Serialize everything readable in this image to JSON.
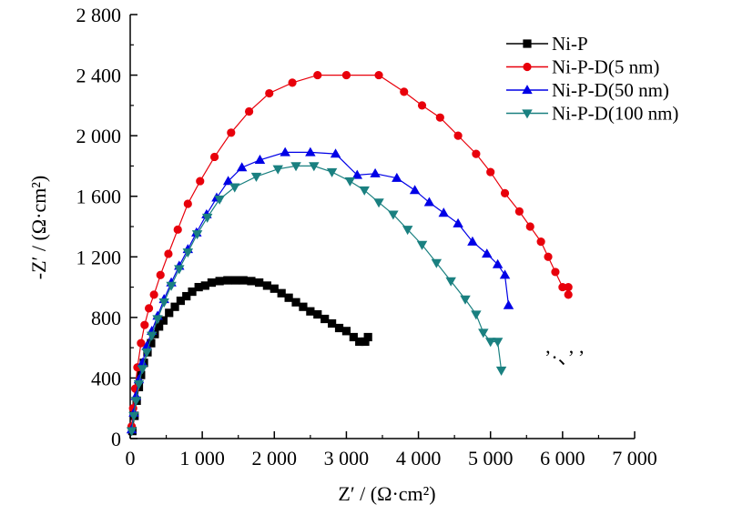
{
  "chart_data": {
    "type": "scatter",
    "title": "",
    "xlabel": "Z′ / (Ω·cm²)",
    "ylabel": "-Z′ / (Ω·cm²)",
    "xlim": [
      0,
      7000
    ],
    "ylim": [
      0,
      2800
    ],
    "xticks": [
      0,
      1000,
      2000,
      3000,
      4000,
      5000,
      6000,
      7000
    ],
    "xtick_labels": [
      "0",
      "1 000",
      "2 000",
      "3 000",
      "4 000",
      "5 000",
      "6 000",
      "7 000"
    ],
    "yticks": [
      0,
      400,
      800,
      1200,
      1600,
      2000,
      2400,
      2800
    ],
    "ytick_labels": [
      "0",
      "400",
      "800",
      "1 200",
      "1 600",
      "2 000",
      "2 400",
      "2 800"
    ],
    "grid": false,
    "legend_position": "top-right",
    "stray_text": "’·、’ ’",
    "series": [
      {
        "name": "Ni-P",
        "color": "#000000",
        "marker": "square",
        "points": [
          [
            30,
            50
          ],
          [
            60,
            150
          ],
          [
            90,
            250
          ],
          [
            120,
            340
          ],
          [
            150,
            420
          ],
          [
            190,
            500
          ],
          [
            240,
            570
          ],
          [
            290,
            630
          ],
          [
            340,
            690
          ],
          [
            400,
            740
          ],
          [
            460,
            780
          ],
          [
            540,
            830
          ],
          [
            620,
            870
          ],
          [
            700,
            910
          ],
          [
            780,
            940
          ],
          [
            860,
            970
          ],
          [
            950,
            1000
          ],
          [
            1040,
            1010
          ],
          [
            1130,
            1030
          ],
          [
            1240,
            1040
          ],
          [
            1350,
            1045
          ],
          [
            1460,
            1045
          ],
          [
            1570,
            1045
          ],
          [
            1680,
            1040
          ],
          [
            1790,
            1030
          ],
          [
            1900,
            1010
          ],
          [
            2000,
            990
          ],
          [
            2100,
            960
          ],
          [
            2200,
            930
          ],
          [
            2300,
            900
          ],
          [
            2400,
            870
          ],
          [
            2500,
            840
          ],
          [
            2600,
            820
          ],
          [
            2700,
            790
          ],
          [
            2800,
            760
          ],
          [
            2900,
            730
          ],
          [
            3000,
            710
          ],
          [
            3100,
            670
          ],
          [
            3180,
            640
          ],
          [
            3260,
            640
          ],
          [
            3300,
            670
          ]
        ]
      },
      {
        "name": "Ni-P-D(5 nm)",
        "color": "#e8000b",
        "marker": "circle",
        "points": [
          [
            20,
            80
          ],
          [
            40,
            200
          ],
          [
            70,
            330
          ],
          [
            100,
            470
          ],
          [
            150,
            630
          ],
          [
            200,
            750
          ],
          [
            260,
            860
          ],
          [
            330,
            950
          ],
          [
            420,
            1080
          ],
          [
            530,
            1220
          ],
          [
            660,
            1380
          ],
          [
            800,
            1550
          ],
          [
            970,
            1700
          ],
          [
            1170,
            1860
          ],
          [
            1400,
            2020
          ],
          [
            1650,
            2160
          ],
          [
            1930,
            2280
          ],
          [
            2250,
            2350
          ],
          [
            2600,
            2400
          ],
          [
            3000,
            2400
          ],
          [
            3450,
            2400
          ],
          [
            3800,
            2290
          ],
          [
            4050,
            2200
          ],
          [
            4300,
            2120
          ],
          [
            4550,
            2000
          ],
          [
            4800,
            1880
          ],
          [
            5000,
            1760
          ],
          [
            5200,
            1620
          ],
          [
            5400,
            1500
          ],
          [
            5550,
            1400
          ],
          [
            5700,
            1300
          ],
          [
            5800,
            1200
          ],
          [
            5900,
            1100
          ],
          [
            6000,
            1000
          ],
          [
            6080,
            1000
          ],
          [
            6080,
            950
          ]
        ]
      },
      {
        "name": "Ni-P-D(50 nm)",
        "color": "#0000e6",
        "marker": "triangle-up",
        "points": [
          [
            20,
            60
          ],
          [
            50,
            170
          ],
          [
            80,
            280
          ],
          [
            120,
            390
          ],
          [
            170,
            500
          ],
          [
            230,
            610
          ],
          [
            300,
            710
          ],
          [
            380,
            810
          ],
          [
            470,
            920
          ],
          [
            570,
            1030
          ],
          [
            680,
            1140
          ],
          [
            800,
            1250
          ],
          [
            920,
            1360
          ],
          [
            1060,
            1480
          ],
          [
            1200,
            1590
          ],
          [
            1360,
            1700
          ],
          [
            1550,
            1790
          ],
          [
            1800,
            1840
          ],
          [
            2150,
            1890
          ],
          [
            2500,
            1890
          ],
          [
            2850,
            1880
          ],
          [
            3150,
            1740
          ],
          [
            3400,
            1750
          ],
          [
            3700,
            1720
          ],
          [
            3950,
            1640
          ],
          [
            4150,
            1560
          ],
          [
            4350,
            1490
          ],
          [
            4550,
            1420
          ],
          [
            4750,
            1300
          ],
          [
            4950,
            1220
          ],
          [
            5100,
            1150
          ],
          [
            5200,
            1080
          ],
          [
            5250,
            880
          ]
        ]
      },
      {
        "name": "Ni-P-D(100 nm)",
        "color": "#1a8080",
        "marker": "triangle-down",
        "points": [
          [
            20,
            50
          ],
          [
            50,
            150
          ],
          [
            80,
            250
          ],
          [
            120,
            360
          ],
          [
            170,
            460
          ],
          [
            230,
            570
          ],
          [
            300,
            680
          ],
          [
            380,
            790
          ],
          [
            470,
            900
          ],
          [
            570,
            1010
          ],
          [
            680,
            1120
          ],
          [
            800,
            1230
          ],
          [
            930,
            1350
          ],
          [
            1070,
            1460
          ],
          [
            1240,
            1580
          ],
          [
            1450,
            1660
          ],
          [
            1750,
            1730
          ],
          [
            2050,
            1780
          ],
          [
            2300,
            1800
          ],
          [
            2550,
            1800
          ],
          [
            2800,
            1760
          ],
          [
            3050,
            1700
          ],
          [
            3250,
            1640
          ],
          [
            3450,
            1560
          ],
          [
            3650,
            1480
          ],
          [
            3850,
            1380
          ],
          [
            4050,
            1280
          ],
          [
            4250,
            1160
          ],
          [
            4450,
            1040
          ],
          [
            4650,
            920
          ],
          [
            4800,
            820
          ],
          [
            4900,
            700
          ],
          [
            5000,
            640
          ],
          [
            5100,
            640
          ],
          [
            5150,
            450
          ]
        ]
      }
    ]
  }
}
